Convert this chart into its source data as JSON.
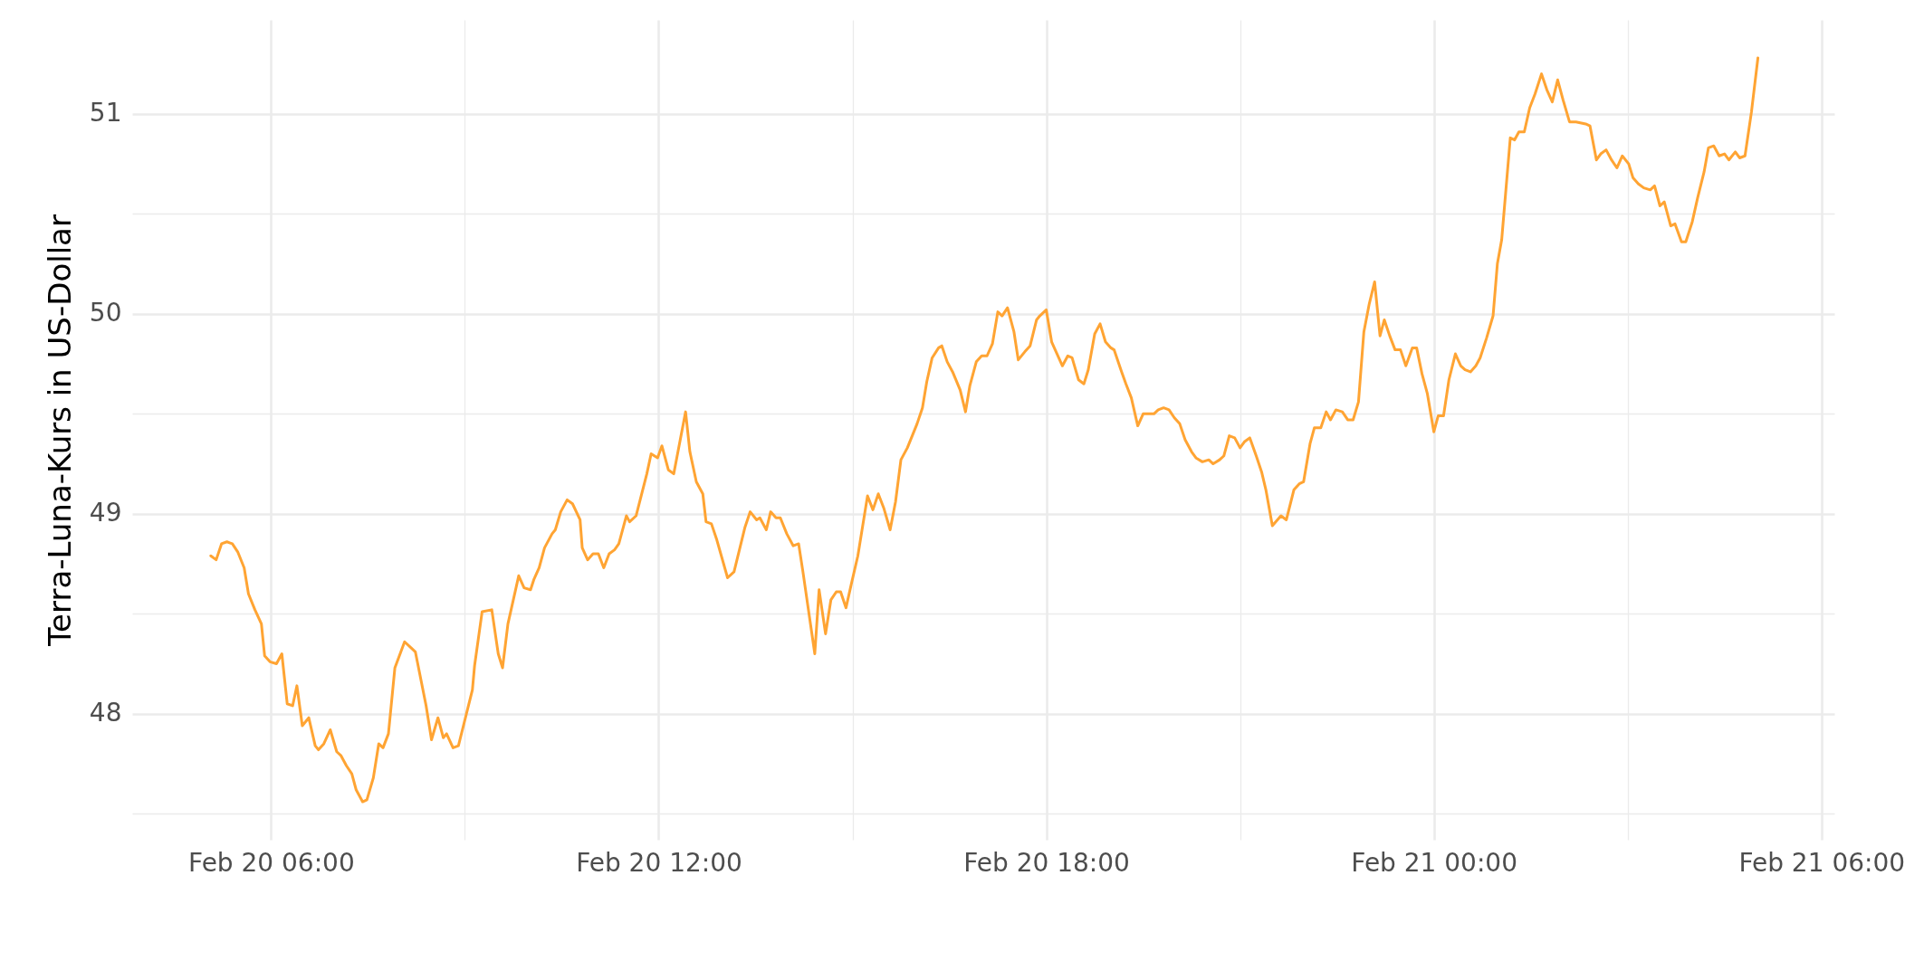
{
  "chart_data": {
    "type": "line",
    "ylabel": "Terra-Luna-Kurs in US-Dollar",
    "x": [
      "--02-20T05:04",
      "--02-20T05:09",
      "--02-20T05:14",
      "--02-20T05:19",
      "--02-20T05:24",
      "--02-20T05:29",
      "--02-20T05:35",
      "--02-20T05:39",
      "--02-20T05:45",
      "--02-20T05:51",
      "--02-20T05:54",
      "--02-20T05:59",
      "--02-20T06:05",
      "--02-20T06:10",
      "--02-20T06:15",
      "--02-20T06:20",
      "--02-20T06:24",
      "--02-20T06:29",
      "--02-20T06:35",
      "--02-20T06:41",
      "--02-20T06:44",
      "--02-20T06:49",
      "--02-20T06:55",
      "--02-20T07:01",
      "--02-20T07:05",
      "--02-20T07:10",
      "--02-20T07:15",
      "--02-20T07:19",
      "--02-20T07:25",
      "--02-20T07:29",
      "--02-20T07:35",
      "--02-20T07:40",
      "--02-20T07:44",
      "--02-20T07:49",
      "--02-20T07:55",
      "--02-20T08:04",
      "--02-20T08:10",
      "--02-20T08:14",
      "--02-20T08:24",
      "--02-20T08:29",
      "--02-20T08:35",
      "--02-20T08:40",
      "--02-20T08:43",
      "--02-20T08:49",
      "--02-20T08:54",
      "--02-20T09:07",
      "--02-20T09:09",
      "--02-20T09:16",
      "--02-20T09:25",
      "--02-20T09:31",
      "--02-20T09:35",
      "--02-20T09:40",
      "--02-20T09:50",
      "--02-20T09:55",
      "--02-20T10:01",
      "--02-20T10:04",
      "--02-20T10:09",
      "--02-20T10:14",
      "--02-20T10:21",
      "--02-20T10:24",
      "--02-20T10:29",
      "--02-20T10:35",
      "--02-20T10:40",
      "--02-20T10:47",
      "--02-20T10:49",
      "--02-20T10:54",
      "--02-20T10:59",
      "--02-20T11:04",
      "--02-20T11:09",
      "--02-20T11:14",
      "--02-20T11:19",
      "--02-20T11:23",
      "--02-20T11:30",
      "--02-20T11:33",
      "--02-20T11:39",
      "--02-20T11:49",
      "--02-20T11:53",
      "--02-20T11:59",
      "--02-20T12:03",
      "--02-20T12:09",
      "--02-20T12:14",
      "--02-20T12:25",
      "--02-20T12:29",
      "--02-20T12:35",
      "--02-20T12:41",
      "--02-20T12:44",
      "--02-20T12:49",
      "--02-20T12:54",
      "--02-20T13:04",
      "--02-20T13:10",
      "--02-20T13:20",
      "--02-20T13:25",
      "--02-20T13:31",
      "--02-20T13:34",
      "--02-20T13:40",
      "--02-20T13:44",
      "--02-20T13:49",
      "--02-20T13:53",
      "--02-20T13:59",
      "--02-20T14:05",
      "--02-20T14:10",
      "--02-20T14:14",
      "--02-20T14:25",
      "--02-20T14:29",
      "--02-20T14:35",
      "--02-20T14:40",
      "--02-20T14:45",
      "--02-20T14:49",
      "--02-20T14:54",
      "--02-20T14:59",
      "--02-20T15:05",
      "--02-20T15:14",
      "--02-20T15:19",
      "--02-20T15:24",
      "--02-20T15:29",
      "--02-20T15:35",
      "--02-20T15:40",
      "--02-20T15:45",
      "--02-20T15:51",
      "--02-20T16:00",
      "--02-20T16:05",
      "--02-20T16:09",
      "--02-20T16:14",
      "--02-20T16:20",
      "--02-20T16:23",
      "--02-20T16:28",
      "--02-20T16:33",
      "--02-20T16:40",
      "--02-20T16:45",
      "--02-20T16:49",
      "--02-20T16:55",
      "--02-20T17:00",
      "--02-20T17:05",
      "--02-20T17:10",
      "--02-20T17:15",
      "--02-20T17:19",
      "--02-20T17:24",
      "--02-20T17:30",
      "--02-20T17:34",
      "--02-20T17:40",
      "--02-20T17:45",
      "--02-20T17:51",
      "--02-20T17:54",
      "--02-20T18:00",
      "--02-20T18:05",
      "--02-20T18:10",
      "--02-20T18:15",
      "--02-20T18:20",
      "--02-20T18:24",
      "--02-20T18:30",
      "--02-20T18:35",
      "--02-20T18:39",
      "--02-20T18:45",
      "--02-20T18:50",
      "--02-20T18:55",
      "--02-20T19:00",
      "--02-20T19:03",
      "--02-20T19:10",
      "--02-20T19:14",
      "--02-20T19:19",
      "--02-20T19:25",
      "--02-20T19:30",
      "--02-20T19:33",
      "--02-20T19:40",
      "--02-20T19:44",
      "--02-20T19:49",
      "--02-20T19:54",
      "--02-20T19:59",
      "--02-20T20:04",
      "--02-20T20:09",
      "--02-20T20:15",
      "--02-20T20:19",
      "--02-20T20:25",
      "--02-20T20:31",
      "--02-20T20:35",
      "--02-20T20:41",
      "--02-20T20:45",
      "--02-20T20:50",
      "--02-20T20:55",
      "--02-20T21:00",
      "--02-20T21:04",
      "--02-20T21:09",
      "--02-20T21:15",
      "--02-20T21:20",
      "--02-20T21:24",
      "--02-20T21:30",
      "--02-20T21:38",
      "--02-20T21:43",
      "--02-20T21:50",
      "--02-20T21:55",
      "--02-20T21:59",
      "--02-20T22:05",
      "--02-20T22:09",
      "--02-20T22:15",
      "--02-20T22:20",
      "--02-20T22:24",
      "--02-20T22:29",
      "--02-20T22:35",
      "--02-20T22:40",
      "--02-20T22:45",
      "--02-20T22:50",
      "--02-20T22:55",
      "--02-20T23:00",
      "--02-20T23:05",
      "--02-20T23:10",
      "--02-20T23:14",
      "--02-20T23:19",
      "--02-20T23:24",
      "--02-20T23:29",
      "--02-20T23:34",
      "--02-20T23:40",
      "--02-20T23:44",
      "--02-20T23:49",
      "--02-20T23:54",
      "--02-21T00:00",
      "--02-21T00:04",
      "--02-21T00:09",
      "--02-21T00:14",
      "--02-21T00:20",
      "--02-21T00:25",
      "--02-21T00:29",
      "--02-21T00:34",
      "--02-21T00:39",
      "--02-21T00:43",
      "--02-21T00:49",
      "--02-21T00:55",
      "--02-21T00:59",
      "--02-21T01:03",
      "--02-21T01:11",
      "--02-21T01:15",
      "--02-21T01:19",
      "--02-21T01:24",
      "--02-21T01:29",
      "--02-21T01:34",
      "--02-21T01:40",
      "--02-21T01:45",
      "--02-21T01:50",
      "--02-21T01:55",
      "--02-21T02:00",
      "--02-21T02:06",
      "--02-21T02:12",
      "--02-21T02:21",
      "--02-21T02:25",
      "--02-21T02:31",
      "--02-21T02:35",
      "--02-21T02:40",
      "--02-21T02:45",
      "--02-21T02:50",
      "--02-21T02:55",
      "--02-21T03:01",
      "--02-21T03:05",
      "--02-21T03:10",
      "--02-21T03:15",
      "--02-21T03:21",
      "--02-21T03:25",
      "--02-21T03:30",
      "--02-21T03:34",
      "--02-21T03:40",
      "--02-21T03:44",
      "--02-21T03:50",
      "--02-21T03:54",
      "--02-21T04:00",
      "--02-21T04:05",
      "--02-21T04:11",
      "--02-21T04:15",
      "--02-21T04:20",
      "--02-21T04:25",
      "--02-21T04:30",
      "--02-21T04:34",
      "--02-21T04:40",
      "--02-21T04:44",
      "--02-21T04:49",
      "--02-21T04:55",
      "--02-21T05:01"
    ],
    "series": [
      {
        "color": "#ffa433",
        "values": [
          48.79,
          48.77,
          48.85,
          48.86,
          48.85,
          48.81,
          48.73,
          48.6,
          48.52,
          48.45,
          48.29,
          48.26,
          48.25,
          48.3,
          48.05,
          48.04,
          48.14,
          47.94,
          47.98,
          47.84,
          47.82,
          47.85,
          47.92,
          47.81,
          47.79,
          47.74,
          47.7,
          47.62,
          47.56,
          47.57,
          47.68,
          47.85,
          47.83,
          47.9,
          48.23,
          48.36,
          48.33,
          48.31,
          48.04,
          47.87,
          47.98,
          47.88,
          47.9,
          47.83,
          47.84,
          48.12,
          48.24,
          48.51,
          48.52,
          48.3,
          48.23,
          48.45,
          48.69,
          48.63,
          48.62,
          48.67,
          48.73,
          48.83,
          48.9,
          48.92,
          49.01,
          49.07,
          49.05,
          48.97,
          48.83,
          48.77,
          48.8,
          48.8,
          48.73,
          48.8,
          48.82,
          48.85,
          48.99,
          48.96,
          48.99,
          49.2,
          49.3,
          49.28,
          49.34,
          49.22,
          49.2,
          49.51,
          49.31,
          49.16,
          49.1,
          48.96,
          48.95,
          48.87,
          48.68,
          48.71,
          48.93,
          49.01,
          48.97,
          48.98,
          48.92,
          49.01,
          48.98,
          48.98,
          48.9,
          48.84,
          48.85,
          48.71,
          48.3,
          48.62,
          48.4,
          48.57,
          48.61,
          48.61,
          48.53,
          48.65,
          48.79,
          49.09,
          49.02,
          49.1,
          49.03,
          48.92,
          49.06,
          49.27,
          49.33,
          49.45,
          49.53,
          49.66,
          49.78,
          49.83,
          49.84,
          49.76,
          49.71,
          49.62,
          49.51,
          49.64,
          49.76,
          49.79,
          49.79,
          49.85,
          50.01,
          49.99,
          50.03,
          49.91,
          49.77,
          49.81,
          49.84,
          49.97,
          49.99,
          50.02,
          49.86,
          49.8,
          49.74,
          49.79,
          49.78,
          49.67,
          49.65,
          49.72,
          49.9,
          49.95,
          49.86,
          49.83,
          49.82,
          49.71,
          49.65,
          49.58,
          49.44,
          49.5,
          49.5,
          49.5,
          49.52,
          49.53,
          49.52,
          49.48,
          49.45,
          49.37,
          49.31,
          49.28,
          49.26,
          49.27,
          49.25,
          49.27,
          49.29,
          49.39,
          49.38,
          49.33,
          49.36,
          49.38,
          49.29,
          49.21,
          49.12,
          48.94,
          48.99,
          48.97,
          49.12,
          49.15,
          49.16,
          49.35,
          49.43,
          49.43,
          49.51,
          49.47,
          49.52,
          49.51,
          49.47,
          49.47,
          49.56,
          49.91,
          50.05,
          50.16,
          49.89,
          49.97,
          49.89,
          49.82,
          49.82,
          49.74,
          49.83,
          49.83,
          49.7,
          49.6,
          49.41,
          49.49,
          49.49,
          49.67,
          49.8,
          49.74,
          49.72,
          49.71,
          49.74,
          49.78,
          49.88,
          49.99,
          50.25,
          50.37,
          50.88,
          50.87,
          50.91,
          50.91,
          51.03,
          51.1,
          51.2,
          51.12,
          51.06,
          51.17,
          51.07,
          50.96,
          50.96,
          50.95,
          50.94,
          50.77,
          50.8,
          50.82,
          50.77,
          50.73,
          50.79,
          50.75,
          50.68,
          50.65,
          50.63,
          50.62,
          50.64,
          50.54,
          50.56,
          50.44,
          50.45,
          50.36,
          50.36,
          50.46,
          50.58,
          50.71,
          50.83,
          50.84,
          50.79,
          50.8,
          50.77,
          50.81,
          50.78,
          50.79,
          51.01,
          51.28
        ]
      }
    ],
    "xlim": [
      "--02-20T03:51",
      "--02-21T06:12"
    ],
    "xticks": [
      {
        "value": "--02-20T06:00",
        "label": "Feb 20 06:00"
      },
      {
        "value": "--02-20T09:00",
        "label": null
      },
      {
        "value": "--02-20T12:00",
        "label": "Feb 20 12:00"
      },
      {
        "value": "--02-20T15:00",
        "label": null
      },
      {
        "value": "--02-20T18:00",
        "label": "Feb 20 18:00"
      },
      {
        "value": "--02-20T21:00",
        "label": null
      },
      {
        "value": "--02-21T00:00",
        "label": "Feb 21 00:00"
      },
      {
        "value": "--02-21T03:00",
        "label": null
      },
      {
        "value": "--02-21T06:00",
        "label": "Feb 21 06:00"
      }
    ],
    "ylim": [
      47.37,
      51.47
    ],
    "yticks": [
      {
        "value": 47.5,
        "label": null
      },
      48,
      {
        "value": 48.5,
        "label": null
      },
      49,
      {
        "value": 49.5,
        "label": null
      },
      50,
      {
        "value": 50.5,
        "label": null
      },
      51
    ],
    "grid": true,
    "line_style": "solid",
    "marker": "none"
  }
}
